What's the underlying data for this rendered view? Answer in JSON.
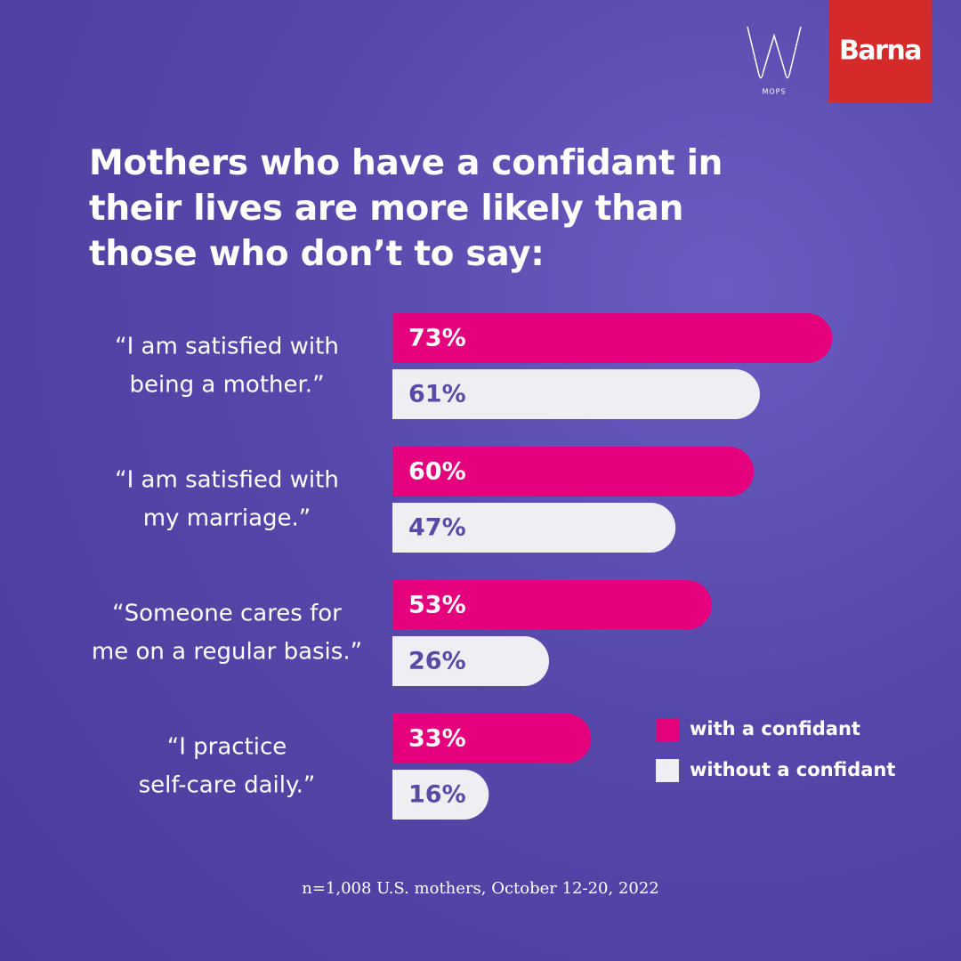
{
  "chart_data": {
    "type": "hbar",
    "title": "Mothers who have a confidant in their lives are more likely than those who don’t to say:",
    "categories": [
      [
        "“I am satisfied with",
        "being a mother.”"
      ],
      [
        "“I am satisfied with",
        "my marriage.”"
      ],
      [
        "“Someone cares for",
        "me on a regular basis.”"
      ],
      [
        "“I practice",
        "self-care daily.”"
      ]
    ],
    "series": [
      {
        "name": "with a confidant",
        "color": "#e5007d",
        "label_color": "#ffffff",
        "values": [
          73,
          60,
          53,
          33
        ],
        "value_labels": [
          "73%",
          "60%",
          "53%",
          "33%"
        ]
      },
      {
        "name": "without a confidant",
        "color": "#efeff3",
        "label_color": "#5a4aa6",
        "values": [
          61,
          47,
          26,
          16
        ],
        "value_labels": [
          "61%",
          "47%",
          "26%",
          "16%"
        ]
      }
    ],
    "footnote": "n=1,008 U.S. mothers, October 12-20, 2022"
  },
  "logos": {
    "mops": "MOPS",
    "barna": "Barna"
  }
}
